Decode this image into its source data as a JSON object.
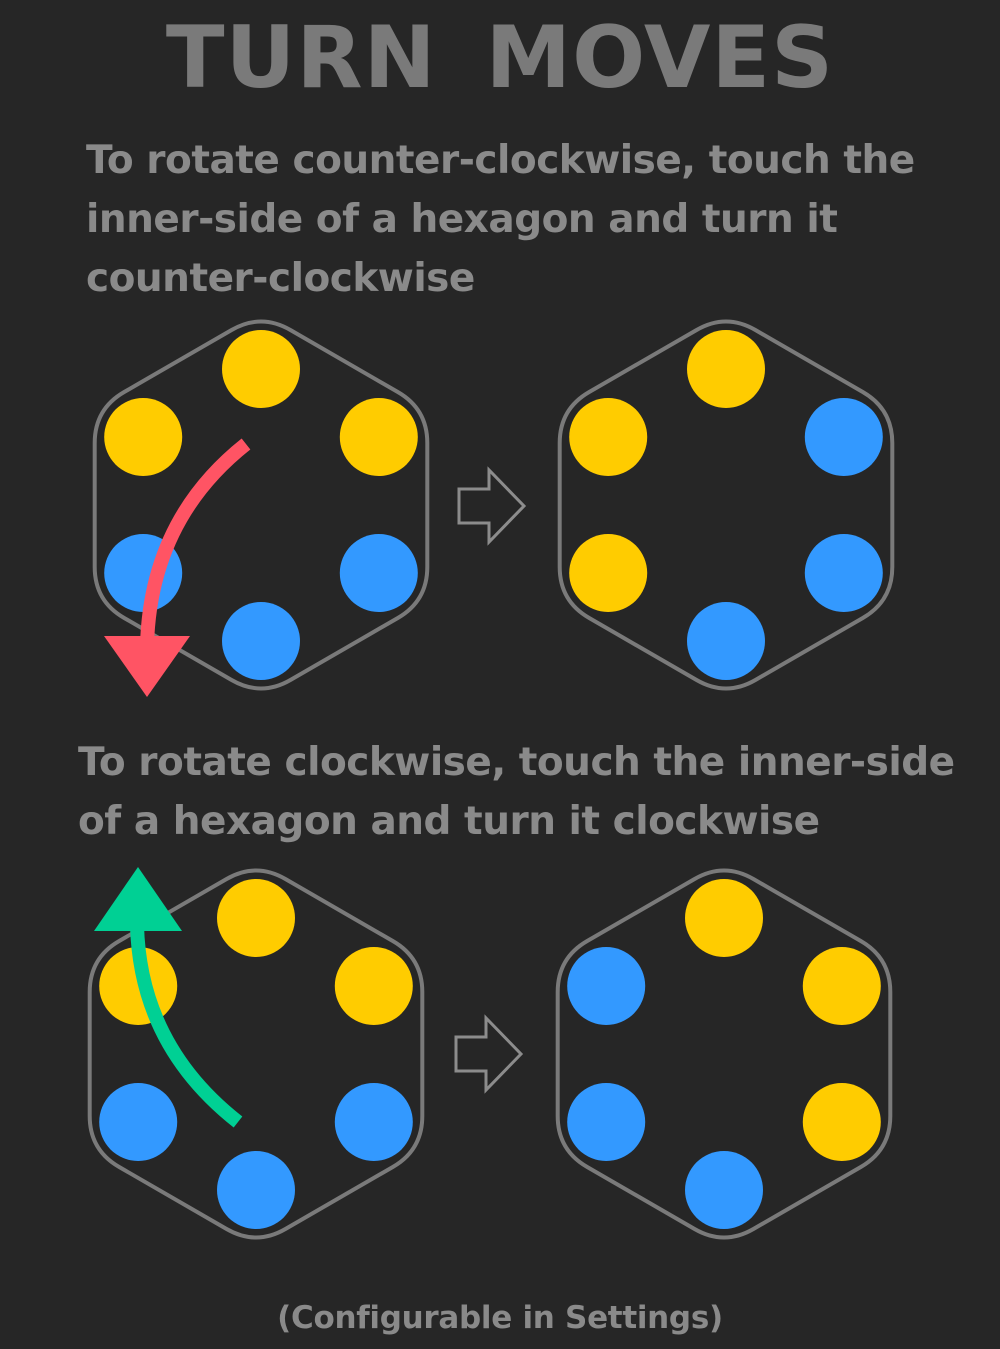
{
  "title": "TURN MOVES",
  "instructions": {
    "counter_clockwise": "To rotate counter-clockwise, touch the inner-side of a hexagon and turn it counter-clockwise",
    "clockwise": "To rotate clockwise, touch the inner-side of a hexagon and turn it clockwise"
  },
  "footer": "(Configurable in Settings)",
  "colors": {
    "background": "#262626",
    "text": "#8a8a8a",
    "hexagon_outline": "#7a7a7a",
    "yellow": "#ffcc00",
    "blue": "#3399ff",
    "ccw_arrow": "#ff5464",
    "cw_arrow": "#00d094",
    "transition_arrow": "#8c8c8c"
  },
  "examples": [
    {
      "name": "counter-clockwise",
      "before": [
        "yellow",
        "yellow",
        "blue",
        "blue",
        "blue",
        "yellow"
      ],
      "after": [
        "yellow",
        "blue",
        "blue",
        "blue",
        "yellow",
        "yellow"
      ],
      "gesture_arrow": "ccw-arrow"
    },
    {
      "name": "clockwise",
      "before": [
        "yellow",
        "yellow",
        "blue",
        "blue",
        "blue",
        "yellow"
      ],
      "after": [
        "yellow",
        "yellow",
        "yellow",
        "blue",
        "blue",
        "blue"
      ],
      "gesture_arrow": "cw-arrow"
    }
  ]
}
